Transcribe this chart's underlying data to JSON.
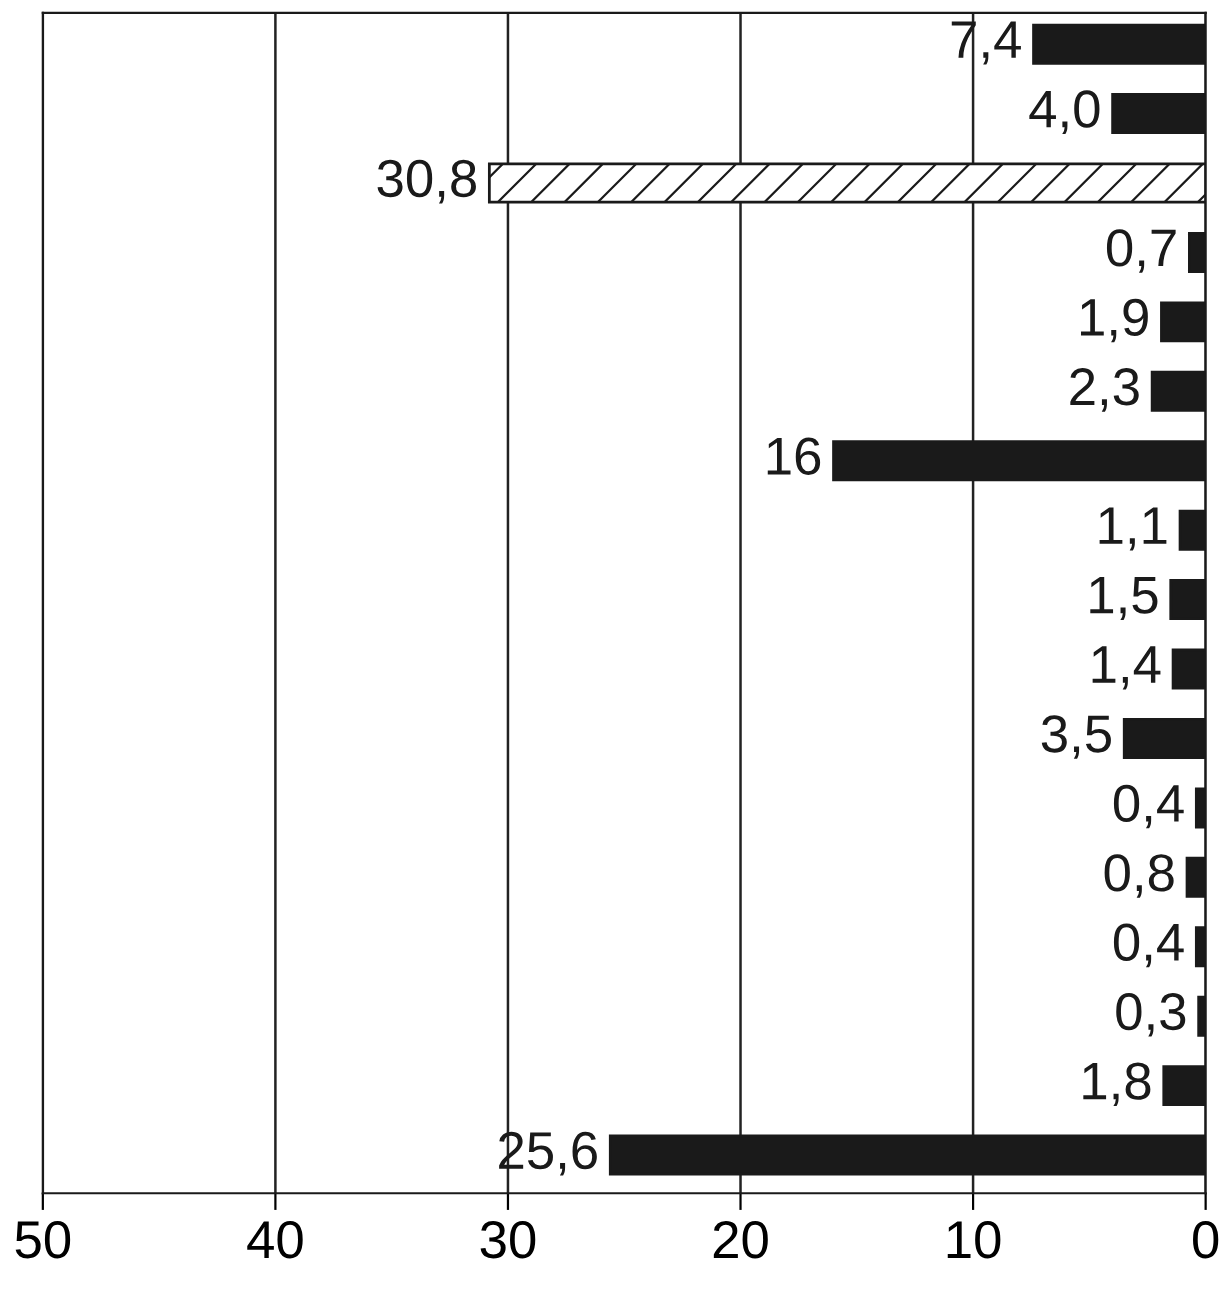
{
  "chart_data": {
    "type": "bar",
    "orientation": "horizontal",
    "categories": [
      null,
      null,
      null,
      null,
      null,
      null,
      null,
      null,
      null,
      null,
      null,
      null,
      null,
      null,
      null,
      null,
      null
    ],
    "values": [
      7.4,
      4.0,
      30.8,
      0.7,
      1.9,
      2.3,
      16,
      1.1,
      1.5,
      1.4,
      3.5,
      0.4,
      0.8,
      0.4,
      0.3,
      1.8,
      25.6
    ],
    "value_labels": [
      "7,4",
      "4,0",
      "30,8",
      "0,7",
      "1,9",
      "2,3",
      "16",
      "1,1",
      "1,5",
      "1,4",
      "3,5",
      "0,4",
      "0,8",
      "0,4",
      "0,3",
      "1,8",
      "25,6"
    ],
    "colors": [
      "#1a1a1a",
      "#1a1a1a",
      "#ffffff",
      "#1a1a1a",
      "#1a1a1a",
      "#1a1a1a",
      "#1a1a1a",
      "#1a1a1a",
      "#1a1a1a",
      "#1a1a1a",
      "#1a1a1a",
      "#1a1a1a",
      "#1a1a1a",
      "#1a1a1a",
      "#1a1a1a",
      "#1a1a1a",
      "#1a1a1a"
    ],
    "xlim": [
      50,
      0
    ],
    "xticks": [
      50,
      40,
      30,
      20,
      10,
      0
    ],
    "grid": "x",
    "tick_labels": "x"
  }
}
